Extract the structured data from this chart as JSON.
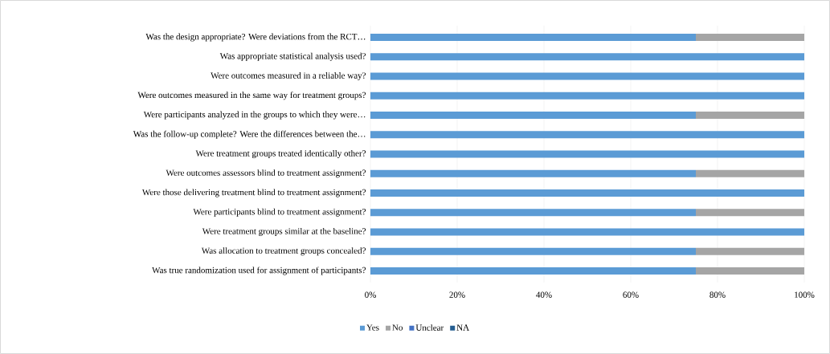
{
  "chart_data": {
    "type": "bar",
    "orientation": "horizontal",
    "stacked": true,
    "categories": [
      "Was the design appropriate? Were deviations from the RCT…",
      "Was appropriate statistical analysis used?",
      "Were outcomes measured in a reliable way?",
      "Were outcomes measured in the same way for treatment groups?",
      "Were participants analyzed in the groups to which they were…",
      "Was the follow-up complete? Were the differences between the…",
      "Were treatment groups treated identically other?",
      "Were outcomes assessors blind to treatment assignment?",
      "Were those delivering treatment blind to treatment assignment?",
      "Were participants blind to treatment assignment?",
      "Were treatment groups similar at the baseline?",
      "Was allocation to treatment groups concealed?",
      "Was true randomization used for assignment of participants?"
    ],
    "series": [
      {
        "name": "Yes",
        "color": "#5b9bd5",
        "values": [
          75,
          100,
          100,
          100,
          75,
          100,
          100,
          75,
          100,
          75,
          100,
          75,
          75
        ]
      },
      {
        "name": "No",
        "color": "#a5a5a5",
        "values": [
          25,
          0,
          0,
          0,
          25,
          0,
          0,
          25,
          0,
          25,
          0,
          25,
          25
        ]
      },
      {
        "name": "Unclear",
        "color": "#4472c4",
        "values": [
          0,
          0,
          0,
          0,
          0,
          0,
          0,
          0,
          0,
          0,
          0,
          0,
          0
        ]
      },
      {
        "name": "NA",
        "color": "#255e91",
        "values": [
          0,
          0,
          0,
          0,
          0,
          0,
          0,
          0,
          0,
          0,
          0,
          0,
          0
        ]
      }
    ],
    "xlim": [
      0,
      100
    ],
    "xticks": [
      {
        "value": 0,
        "label": "0%"
      },
      {
        "value": 20,
        "label": "20%"
      },
      {
        "value": 40,
        "label": "40%"
      },
      {
        "value": 60,
        "label": "60%"
      },
      {
        "value": 80,
        "label": "80%"
      },
      {
        "value": 100,
        "label": "100%"
      }
    ],
    "grid": "x",
    "legend": "bottom"
  }
}
